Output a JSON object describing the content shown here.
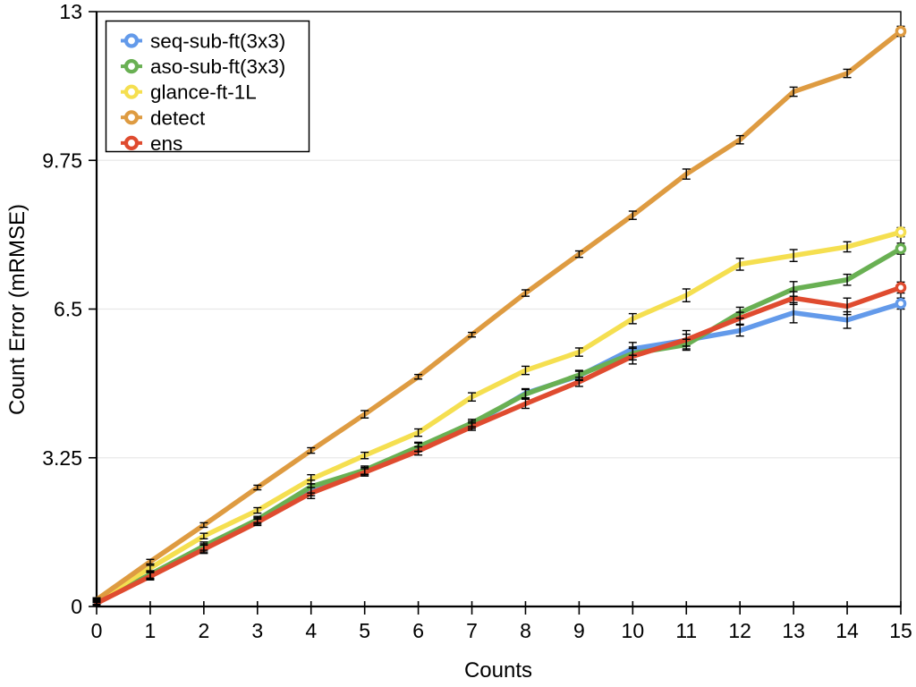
{
  "chart_data": {
    "type": "line",
    "title": "",
    "xlabel": "Counts",
    "ylabel": "Count Error (mRMSE)",
    "xlim": [
      0,
      15
    ],
    "ylim": [
      0,
      13
    ],
    "x": [
      0,
      1,
      2,
      3,
      4,
      5,
      6,
      7,
      8,
      9,
      10,
      11,
      12,
      13,
      14,
      15
    ],
    "xticks": [
      0,
      1,
      2,
      3,
      4,
      5,
      6,
      7,
      8,
      9,
      10,
      11,
      12,
      13,
      14,
      15
    ],
    "xtick_labels": [
      "0",
      "1",
      "2",
      "3",
      "4",
      "5",
      "6",
      "7",
      "8",
      "9",
      "10",
      "11",
      "12",
      "13",
      "14",
      "15"
    ],
    "yticks": [
      0,
      3.25,
      6.5,
      9.75,
      13
    ],
    "ytick_labels": [
      "0",
      "3.25",
      "6.5",
      "9.75",
      "13"
    ],
    "grid": "horizontal",
    "grid_color": "#e9e9e9",
    "axis_color": "#000000",
    "error_bars": true,
    "marker": "open-circle",
    "legend_position": "top-left",
    "series": [
      {
        "name": "seq-sub-ft(3x3)",
        "color": "#639AEA",
        "values": [
          0.09,
          0.68,
          1.28,
          1.87,
          2.55,
          2.96,
          3.48,
          3.97,
          4.66,
          5.04,
          5.63,
          5.82,
          6.03,
          6.42,
          6.26,
          6.62
        ],
        "err": [
          0.06,
          0.08,
          0.09,
          0.07,
          0.13,
          0.08,
          0.09,
          0.08,
          0.1,
          0.1,
          0.14,
          0.13,
          0.12,
          0.22,
          0.18,
          0.12
        ]
      },
      {
        "name": "aso-sub-ft(3x3)",
        "color": "#69B053",
        "values": [
          0.11,
          0.7,
          1.32,
          1.9,
          2.62,
          2.98,
          3.49,
          4.01,
          4.64,
          5.06,
          5.53,
          5.72,
          6.42,
          6.94,
          7.14,
          7.82
        ],
        "err": [
          0.06,
          0.08,
          0.09,
          0.07,
          0.14,
          0.09,
          0.1,
          0.08,
          0.1,
          0.1,
          0.14,
          0.12,
          0.12,
          0.16,
          0.12,
          0.12
        ]
      },
      {
        "name": "glance-ft-1L",
        "color": "#F5DF50",
        "values": [
          0.14,
          0.84,
          1.54,
          2.1,
          2.78,
          3.3,
          3.8,
          4.58,
          5.16,
          5.56,
          6.29,
          6.8,
          7.48,
          7.67,
          7.86,
          8.18
        ],
        "err": [
          0.05,
          0.06,
          0.06,
          0.06,
          0.1,
          0.07,
          0.08,
          0.09,
          0.09,
          0.09,
          0.11,
          0.14,
          0.13,
          0.13,
          0.11,
          0.1
        ]
      },
      {
        "name": "detect",
        "color": "#DE9B41",
        "values": [
          0.15,
          0.98,
          1.78,
          2.6,
          3.41,
          4.2,
          5.02,
          5.94,
          6.85,
          7.7,
          8.55,
          9.45,
          10.2,
          11.25,
          11.65,
          12.57
        ],
        "err": [
          0.04,
          0.05,
          0.05,
          0.05,
          0.06,
          0.08,
          0.05,
          0.05,
          0.07,
          0.07,
          0.09,
          0.11,
          0.09,
          0.1,
          0.09,
          0.11
        ]
      },
      {
        "name": "ens",
        "color": "#DF4B2F",
        "values": [
          0.07,
          0.66,
          1.25,
          1.84,
          2.48,
          2.93,
          3.4,
          3.93,
          4.43,
          4.91,
          5.47,
          5.83,
          6.3,
          6.74,
          6.56,
          6.97
        ],
        "err": [
          0.06,
          0.08,
          0.09,
          0.07,
          0.12,
          0.08,
          0.09,
          0.08,
          0.1,
          0.1,
          0.17,
          0.2,
          0.13,
          0.14,
          0.18,
          0.12
        ]
      }
    ]
  }
}
